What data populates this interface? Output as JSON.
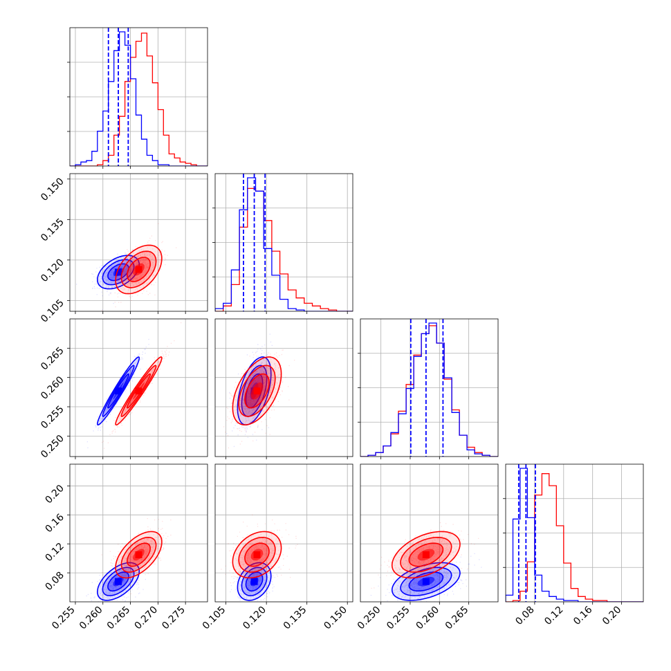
{
  "chart_data": {
    "type": "corner",
    "grid": true,
    "params": [
      {
        "id": "p0",
        "range": [
          0.254,
          0.279
        ],
        "ticks": [
          "0.255",
          "0.260",
          "0.265",
          "0.270",
          "0.275"
        ],
        "tick_values": [
          0.255,
          0.26,
          0.265,
          0.27,
          0.275
        ]
      },
      {
        "id": "p1",
        "range": [
          0.101,
          0.152
        ],
        "ticks": [
          "0.105",
          "0.120",
          "0.135",
          "0.150"
        ],
        "tick_values": [
          0.105,
          0.12,
          0.135,
          0.15
        ]
      },
      {
        "id": "p2",
        "range": [
          0.2465,
          0.27
        ],
        "ticks": [
          "0.250",
          "0.255",
          "0.260",
          "0.265"
        ],
        "tick_values": [
          0.25,
          0.255,
          0.26,
          0.265
        ]
      },
      {
        "id": "p3",
        "range": [
          0.04,
          0.23
        ],
        "ticks": [
          "0.08",
          "0.12",
          "0.16",
          "0.20"
        ],
        "tick_values": [
          0.08,
          0.12,
          0.16,
          0.2
        ]
      }
    ],
    "series": [
      {
        "color": "#0000ff",
        "means": [
          0.2628,
          0.1155,
          0.2577,
          0.068
        ],
        "sds": [
          0.0019,
          0.0031,
          0.0029,
          0.013
        ],
        "correlations": {
          "0-1": 0.45,
          "0-2": 0.97,
          "1-2": 0.5,
          "0-3": 0.55,
          "1-3": 0.3,
          "2-3": 0.45
        },
        "quantiles_shown": true,
        "quantiles": [
          [
            0.261,
            0.2628,
            0.2646
          ],
          [
            0.1115,
            0.1155,
            0.1195
          ],
          [
            0.2551,
            0.2577,
            0.2606
          ],
          [
            0.058,
            0.068,
            0.081
          ]
        ]
      },
      {
        "color": "#ff0000",
        "means": [
          0.2665,
          0.1165,
          0.2577,
          0.105
        ],
        "sds": [
          0.0021,
          0.0045,
          0.0029,
          0.016
        ],
        "correlations": {
          "0-1": 0.45,
          "0-2": 0.97,
          "1-2": 0.5,
          "0-3": 0.55,
          "1-3": 0.3,
          "2-3": 0.45
        },
        "quantiles_shown": false
      }
    ],
    "histograms": {
      "0": {
        "bins": [
          0.254,
          0.255,
          0.256,
          0.257,
          0.258,
          0.259,
          0.26,
          0.261,
          0.262,
          0.263,
          0.264,
          0.265,
          0.266,
          0.267,
          0.268,
          0.269,
          0.27,
          0.271,
          0.272,
          0.273,
          0.274,
          0.275,
          0.276,
          0.277,
          0.278,
          0.279
        ],
        "blue": [
          0,
          0.01,
          0.03,
          0.04,
          0.11,
          0.26,
          0.41,
          0.63,
          0.86,
          1.0,
          0.9,
          0.65,
          0.38,
          0.2,
          0.08,
          0.04,
          0.01,
          0.01,
          0,
          0,
          0,
          0,
          0,
          0,
          0
        ],
        "red": [
          0,
          0,
          0,
          0,
          0,
          0.01,
          0.04,
          0.08,
          0.23,
          0.37,
          0.63,
          0.81,
          0.93,
          0.99,
          0.82,
          0.62,
          0.42,
          0.23,
          0.09,
          0.06,
          0.03,
          0.02,
          0.01,
          0,
          0
        ]
      },
      "1": {
        "bins": [
          0.101,
          0.104,
          0.107,
          0.11,
          0.113,
          0.116,
          0.119,
          0.122,
          0.125,
          0.128,
          0.131,
          0.134,
          0.137,
          0.14,
          0.143,
          0.146,
          0.149,
          0.152
        ],
        "blue": [
          0.02,
          0.06,
          0.31,
          0.76,
          1.0,
          0.9,
          0.47,
          0.27,
          0.09,
          0.02,
          0.01,
          0,
          0,
          0,
          0,
          0,
          0
        ],
        "red": [
          0,
          0.04,
          0.2,
          0.63,
          0.92,
          0.9,
          0.68,
          0.45,
          0.28,
          0.16,
          0.1,
          0.06,
          0.04,
          0.02,
          0.01,
          0,
          0
        ]
      },
      "2": {
        "bins": [
          0.2465,
          0.2478,
          0.2491,
          0.2504,
          0.2517,
          0.253,
          0.2543,
          0.2556,
          0.2569,
          0.2582,
          0.2595,
          0.2608,
          0.2621,
          0.2634,
          0.2647,
          0.266,
          0.2673,
          0.2686,
          0.27
        ],
        "blue": [
          0,
          0.01,
          0.03,
          0.08,
          0.18,
          0.32,
          0.51,
          0.75,
          0.92,
          1.0,
          0.85,
          0.59,
          0.33,
          0.16,
          0.05,
          0.02,
          0.01,
          0
        ],
        "red": [
          0,
          0.01,
          0.03,
          0.08,
          0.17,
          0.34,
          0.54,
          0.76,
          0.92,
          0.98,
          0.85,
          0.58,
          0.35,
          0.16,
          0.07,
          0.03,
          0.01,
          0
        ]
      },
      "3": {
        "bins": [
          0.04,
          0.05,
          0.06,
          0.07,
          0.08,
          0.09,
          0.1,
          0.11,
          0.12,
          0.13,
          0.14,
          0.15,
          0.16,
          0.17,
          0.18,
          0.19,
          0.2,
          0.21,
          0.22,
          0.23
        ],
        "blue": [
          0.05,
          0.62,
          1.0,
          0.63,
          0.2,
          0.08,
          0.04,
          0.02,
          0.01,
          0.01,
          0,
          0,
          0,
          0,
          0,
          0,
          0,
          0,
          0
        ],
        "red": [
          0,
          0.01,
          0.08,
          0.3,
          0.8,
          0.96,
          0.87,
          0.57,
          0.29,
          0.1,
          0.04,
          0.02,
          0.01,
          0.01,
          0,
          0,
          0,
          0,
          0
        ]
      }
    }
  }
}
